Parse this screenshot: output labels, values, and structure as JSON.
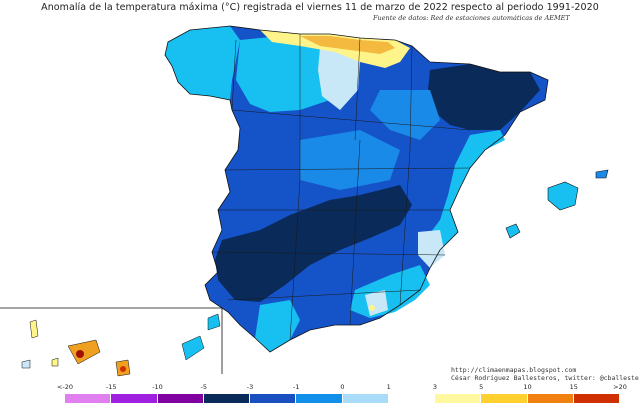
{
  "title": "Anomalía de la temperatura máxima (°C) registrada el viernes 11 de marzo de 2022 respecto al periodo 1991-2020",
  "source": "Fuente de datos: Red de estaciones automáticas de AEMET",
  "credits": {
    "url": "http://climaenmapas.blogspot.com",
    "author": "César Rodríguez Ballesteros, twitter: @cballesteros"
  },
  "legend": {
    "ticks": [
      "<-20",
      "-15",
      "-10",
      "-5",
      "-3",
      "-1",
      "0",
      "1",
      "3",
      "5",
      "10",
      "15",
      ">20"
    ],
    "colors": [
      "#e080f0",
      "#a020e0",
      "#8000a0",
      "#0a2a5a",
      "#1a4fc0",
      "#1090e8",
      "#a8dcf8",
      "#ffffff",
      "#fff8a0",
      "#ffd030",
      "#f08010",
      "#d03000",
      "#a01000",
      "#7a3a10"
    ]
  },
  "map_colors": {
    "deep_blue": "#0a2a5a",
    "blue": "#1553c8",
    "mid_blue": "#1a8ae8",
    "light_blue": "#17c0f0",
    "pale_blue": "#c8e8f8",
    "yellow": "#fff48a",
    "orange": "#f0a020"
  }
}
